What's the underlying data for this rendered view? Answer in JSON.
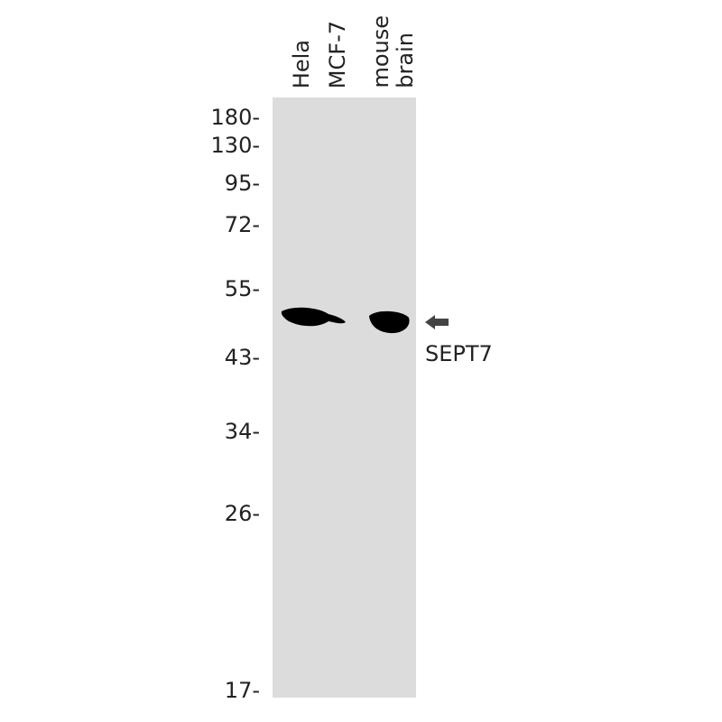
{
  "lanes": [
    "Hela",
    "MCF-7",
    "mouse",
    "brain"
  ],
  "markers": [
    "180-",
    "130-",
    "95-",
    "72-",
    "55-",
    "43-",
    "34-",
    "26-",
    "17-"
  ],
  "target": {
    "label": "SEPT7",
    "arrow_icon": "arrow-left-icon"
  },
  "colors": {
    "gel": "#dcdcdc",
    "band": "#000000",
    "arrow": "#444444"
  }
}
